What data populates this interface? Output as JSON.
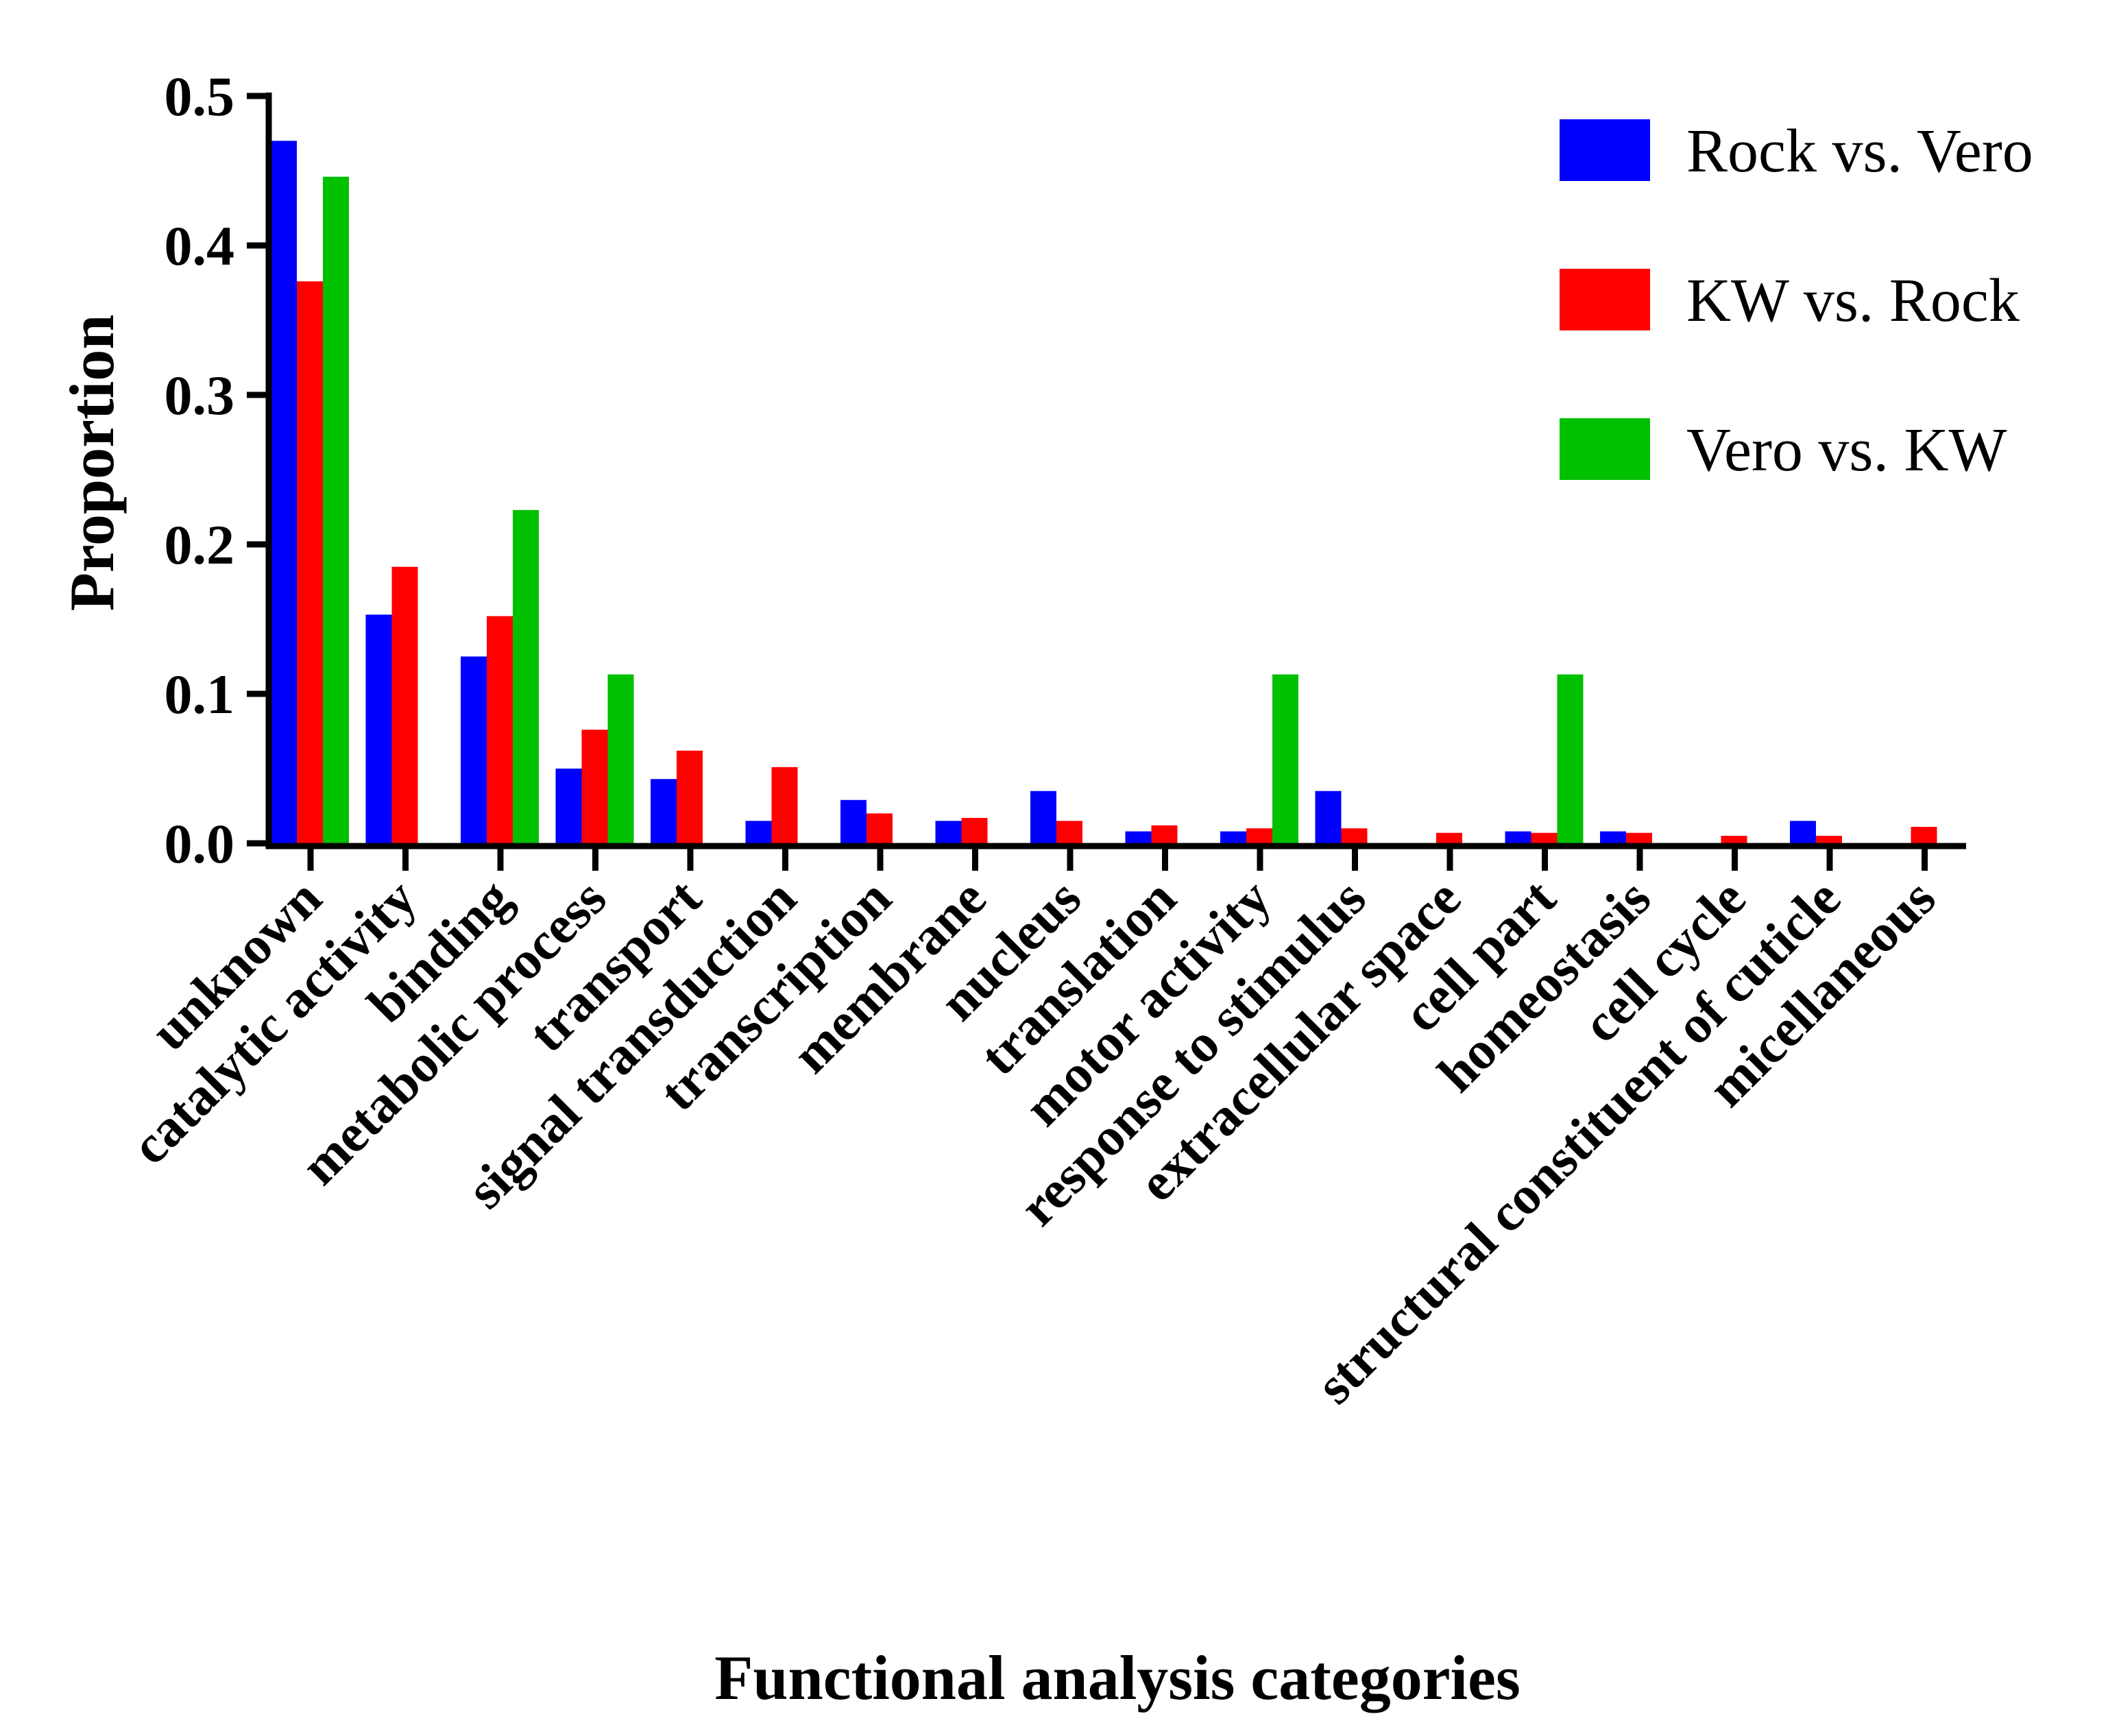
{
  "chart_data": {
    "type": "bar",
    "title": "",
    "xlabel": "Functional analysis categories",
    "ylabel": "Proportion",
    "ylim": [
      0,
      0.5
    ],
    "yticks": [
      "0.0",
      "0.1",
      "0.2",
      "0.3",
      "0.4",
      "0.5"
    ],
    "grid": false,
    "legend_position": "top-right",
    "categories": [
      "unknown",
      "catalytic activity",
      "binding",
      "metabolic process",
      "transport",
      "signal transduction",
      "transcription",
      "membrane",
      "nucleus",
      "translation",
      "motor activity",
      "response to stimulus",
      "extracellular space",
      "cell part",
      "homeostasis",
      "cell cycle",
      "structural constituent of cuticle",
      "micellaneous"
    ],
    "series": [
      {
        "name": "Rock vs. Vero",
        "color": "#0000ff",
        "values": [
          0.47,
          0.153,
          0.125,
          0.05,
          0.043,
          0.015,
          0.029,
          0.015,
          0.035,
          0.008,
          0.008,
          0.035,
          0,
          0.008,
          0.008,
          0,
          0.015,
          0
        ]
      },
      {
        "name": "KW vs. Rock",
        "color": "#ff0000",
        "values": [
          0.376,
          0.185,
          0.152,
          0.076,
          0.062,
          0.051,
          0.02,
          0.017,
          0.015,
          0.012,
          0.01,
          0.01,
          0.007,
          0.007,
          0.007,
          0.005,
          0.005,
          0.011
        ]
      },
      {
        "name": "Vero vs. KW",
        "color": "#00c000",
        "values": [
          0.446,
          0,
          0.223,
          0.113,
          0,
          0,
          0,
          0,
          0,
          0,
          0.113,
          0,
          0,
          0.113,
          0,
          0,
          0,
          0
        ]
      }
    ]
  }
}
